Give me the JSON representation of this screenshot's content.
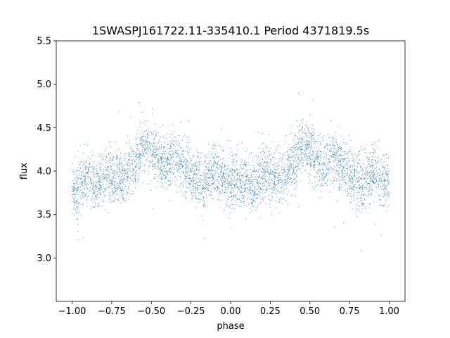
{
  "chart_data": {
    "type": "scatter",
    "title": "1SWASPJ161722.11-335410.1 Period 4371819.5s",
    "xlabel": "phase",
    "ylabel": "flux",
    "xlim": [
      -1.1,
      1.1
    ],
    "ylim": [
      2.5,
      5.5
    ],
    "xticks": [
      -1.0,
      -0.75,
      -0.5,
      -0.25,
      0.0,
      0.25,
      0.5,
      0.75,
      1.0
    ],
    "xtick_labels": [
      "−1.00",
      "−0.75",
      "−0.50",
      "−0.25",
      "0.00",
      "0.25",
      "0.50",
      "0.75",
      "1.00"
    ],
    "yticks": [
      3.0,
      3.5,
      4.0,
      4.5,
      5.0,
      5.5
    ],
    "ytick_labels": [
      "3.0",
      "3.5",
      "4.0",
      "4.5",
      "5.0",
      "5.5"
    ],
    "grid": false,
    "legend": "none",
    "marker_color": "#1f77b4",
    "series": [
      {
        "values_description_points": [
          [
            -1.0,
            3.85
          ],
          [
            -0.97,
            3.75
          ],
          [
            -0.93,
            3.9
          ],
          [
            -0.9,
            3.95
          ],
          [
            -0.87,
            3.85
          ],
          [
            -0.84,
            3.8
          ],
          [
            -0.82,
            3.9
          ],
          [
            -0.79,
            4.0
          ],
          [
            -0.75,
            3.9
          ],
          [
            -0.71,
            3.95
          ],
          [
            -0.67,
            3.9
          ],
          [
            -0.63,
            4.1
          ],
          [
            -0.6,
            4.05
          ],
          [
            -0.56,
            4.25
          ],
          [
            -0.53,
            4.3
          ],
          [
            -0.5,
            4.2
          ],
          [
            -0.46,
            4.15
          ],
          [
            -0.43,
            4.1
          ],
          [
            -0.4,
            4.05
          ],
          [
            -0.37,
            4.2
          ],
          [
            -0.34,
            4.15
          ],
          [
            -0.3,
            4.05
          ],
          [
            -0.27,
            4.0
          ],
          [
            -0.24,
            3.95
          ],
          [
            -0.2,
            3.9
          ],
          [
            -0.17,
            3.85
          ],
          [
            -0.14,
            3.95
          ],
          [
            -0.1,
            4.0
          ],
          [
            -0.07,
            3.95
          ],
          [
            -0.03,
            3.9
          ],
          [
            0.0,
            3.85
          ],
          [
            0.03,
            3.9
          ],
          [
            0.07,
            3.85
          ],
          [
            0.1,
            3.9
          ],
          [
            0.13,
            3.8
          ],
          [
            0.16,
            3.85
          ],
          [
            0.18,
            3.9
          ],
          [
            0.21,
            4.0
          ],
          [
            0.25,
            3.9
          ],
          [
            0.29,
            3.95
          ],
          [
            0.33,
            3.9
          ],
          [
            0.37,
            4.1
          ],
          [
            0.4,
            4.05
          ],
          [
            0.44,
            4.25
          ],
          [
            0.47,
            4.3
          ],
          [
            0.5,
            4.2
          ],
          [
            0.54,
            4.15
          ],
          [
            0.57,
            4.1
          ],
          [
            0.6,
            4.05
          ],
          [
            0.63,
            4.2
          ],
          [
            0.66,
            4.15
          ],
          [
            0.7,
            4.05
          ],
          [
            0.73,
            4.0
          ],
          [
            0.76,
            3.95
          ],
          [
            0.8,
            3.9
          ],
          [
            0.83,
            3.85
          ],
          [
            0.86,
            3.95
          ],
          [
            0.9,
            4.0
          ],
          [
            0.93,
            3.95
          ],
          [
            0.97,
            3.9
          ],
          [
            1.0,
            3.85
          ]
        ]
      }
    ]
  }
}
